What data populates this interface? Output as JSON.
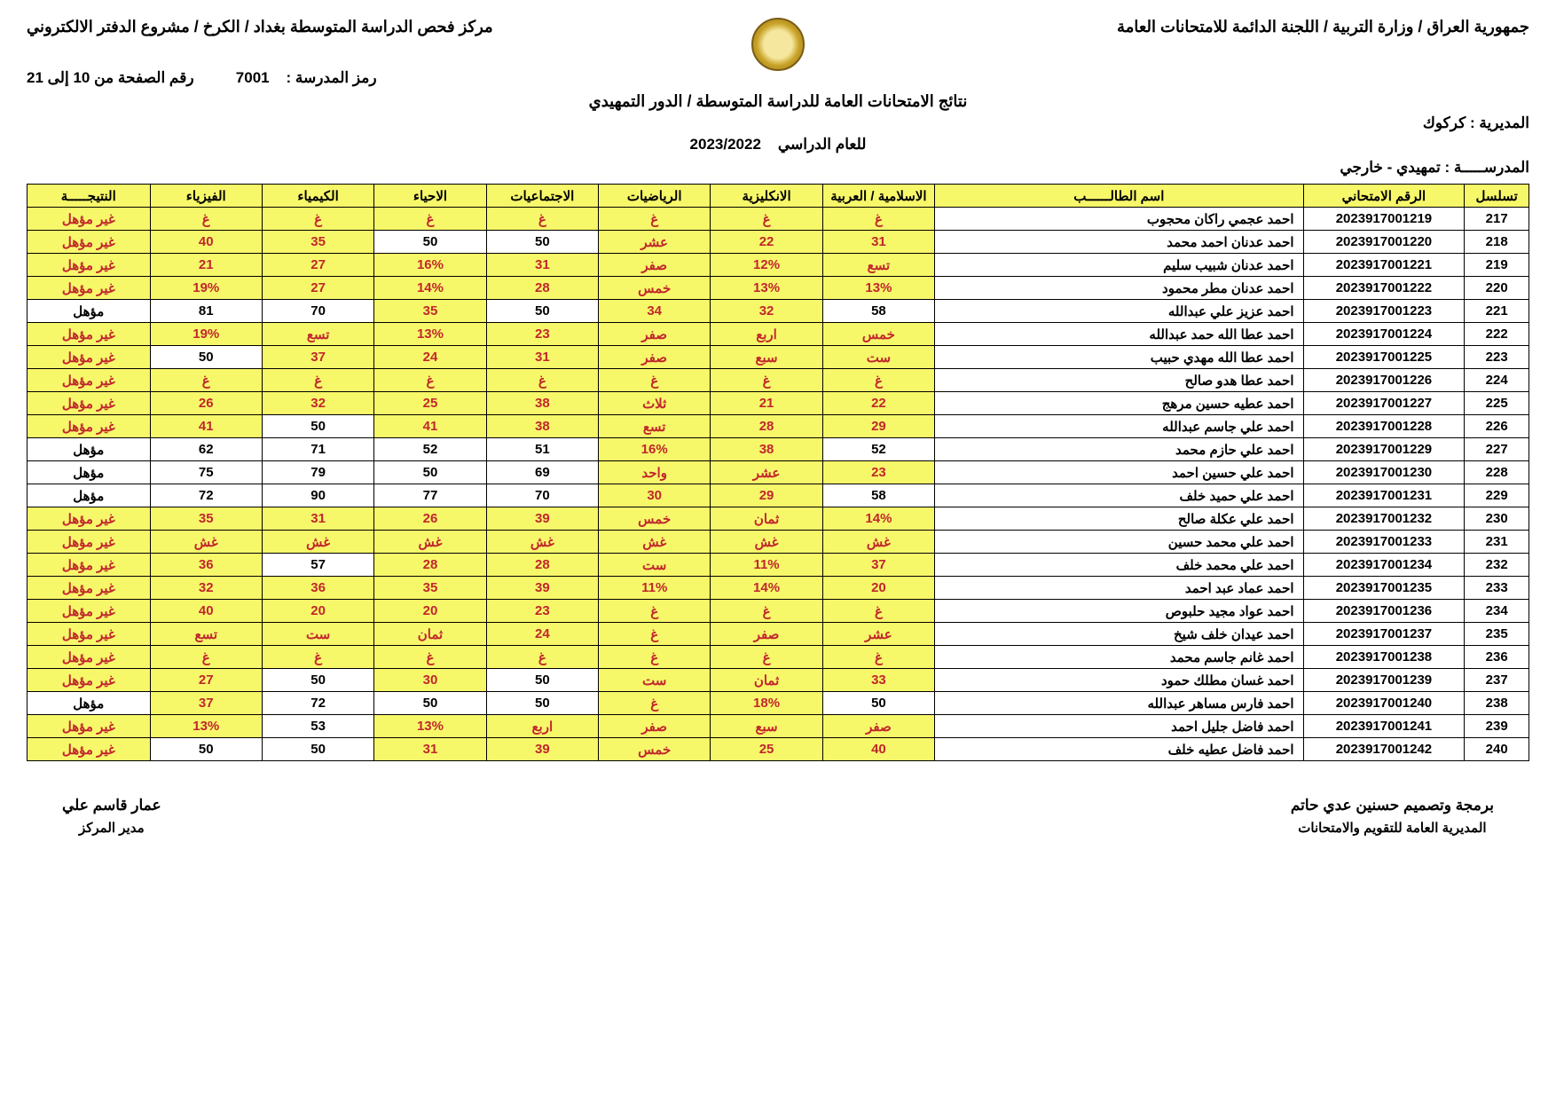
{
  "header": {
    "right": "جمهورية العراق / وزارة التربية / اللجنة الدائمة للامتحانات العامة",
    "left": "مركز فحص الدراسة المتوسطة بغداد / الكرخ / مشروع الدفتر الالكتروني",
    "school_code_label": "رمز المدرسة :",
    "school_code": "7001",
    "page_label": "رقم الصفحة من 10 إلى 21",
    "title": "نتائج الامتحانات العامة للدراسة المتوسطة / الدور التمهيدي",
    "year_label": "للعام الدراسي",
    "year": "2023/2022",
    "directorate_label": "المديرية",
    "directorate": "كركوك",
    "school_label": "المدرســـــة",
    "school": "تمهيدي - خارجي"
  },
  "columns": [
    "تسلسل",
    "الرقم الامتحاني",
    "اسم الطالــــــب",
    "الاسلامية / العربية",
    "الانكليزية",
    "الرياضيات",
    "الاجتماعيات",
    "الاحياء",
    "الكيمياء",
    "الفيزياء",
    "النتيجـــــة"
  ],
  "pass_label": "مؤهل",
  "fail_label": "غير مؤهل",
  "rows": [
    {
      "seq": "217",
      "exam": "2023917001219",
      "name": "احمد عجمي راكان محجوب",
      "g": [
        "غ",
        "غ",
        "غ",
        "غ",
        "غ",
        "غ",
        "غ"
      ],
      "f": [
        1,
        1,
        1,
        1,
        1,
        1,
        1
      ],
      "res": 0
    },
    {
      "seq": "218",
      "exam": "2023917001220",
      "name": "احمد عدنان احمد محمد",
      "g": [
        "31",
        "22",
        "عشر",
        "50",
        "50",
        "35",
        "40"
      ],
      "f": [
        1,
        1,
        1,
        0,
        0,
        1,
        1
      ],
      "res": 0
    },
    {
      "seq": "219",
      "exam": "2023917001221",
      "name": "احمد عدنان شبيب سليم",
      "g": [
        "تسع",
        "12%",
        "صفر",
        "31",
        "16%",
        "27",
        "21"
      ],
      "f": [
        1,
        1,
        1,
        1,
        1,
        1,
        1
      ],
      "res": 0
    },
    {
      "seq": "220",
      "exam": "2023917001222",
      "name": "احمد عدنان مطر محمود",
      "g": [
        "13%",
        "13%",
        "خمس",
        "28",
        "14%",
        "27",
        "19%"
      ],
      "f": [
        1,
        1,
        1,
        1,
        1,
        1,
        1
      ],
      "res": 0
    },
    {
      "seq": "221",
      "exam": "2023917001223",
      "name": "احمد عزيز علي عبدالله",
      "g": [
        "58",
        "32",
        "34",
        "50",
        "35",
        "70",
        "81"
      ],
      "f": [
        0,
        1,
        1,
        0,
        1,
        0,
        0
      ],
      "res": 1
    },
    {
      "seq": "222",
      "exam": "2023917001224",
      "name": "احمد عطا الله حمد عبدالله",
      "g": [
        "خمس",
        "اربع",
        "صفر",
        "23",
        "13%",
        "تسع",
        "19%"
      ],
      "f": [
        1,
        1,
        1,
        1,
        1,
        1,
        1
      ],
      "res": 0
    },
    {
      "seq": "223",
      "exam": "2023917001225",
      "name": "احمد عطا الله مهدي حبيب",
      "g": [
        "ست",
        "سبع",
        "صفر",
        "31",
        "24",
        "37",
        "50"
      ],
      "f": [
        1,
        1,
        1,
        1,
        1,
        1,
        0
      ],
      "res": 0
    },
    {
      "seq": "224",
      "exam": "2023917001226",
      "name": "احمد عطا هدو صالح",
      "g": [
        "غ",
        "غ",
        "غ",
        "غ",
        "غ",
        "غ",
        "غ"
      ],
      "f": [
        1,
        1,
        1,
        1,
        1,
        1,
        1
      ],
      "res": 0
    },
    {
      "seq": "225",
      "exam": "2023917001227",
      "name": "احمد عطيه حسين مرهج",
      "g": [
        "22",
        "21",
        "ثلاث",
        "38",
        "25",
        "32",
        "26"
      ],
      "f": [
        1,
        1,
        1,
        1,
        1,
        1,
        1
      ],
      "res": 0
    },
    {
      "seq": "226",
      "exam": "2023917001228",
      "name": "احمد علي جاسم عبدالله",
      "g": [
        "29",
        "28",
        "تسع",
        "38",
        "41",
        "50",
        "41"
      ],
      "f": [
        1,
        1,
        1,
        1,
        1,
        0,
        1
      ],
      "res": 0
    },
    {
      "seq": "227",
      "exam": "2023917001229",
      "name": "احمد علي حازم محمد",
      "g": [
        "52",
        "38",
        "16%",
        "51",
        "52",
        "71",
        "62"
      ],
      "f": [
        0,
        1,
        1,
        0,
        0,
        0,
        0
      ],
      "res": 1
    },
    {
      "seq": "228",
      "exam": "2023917001230",
      "name": "احمد علي حسين احمد",
      "g": [
        "23",
        "عشر",
        "واحد",
        "69",
        "50",
        "79",
        "75"
      ],
      "f": [
        1,
        1,
        1,
        0,
        0,
        0,
        0
      ],
      "res": 1
    },
    {
      "seq": "229",
      "exam": "2023917001231",
      "name": "احمد علي حميد خلف",
      "g": [
        "58",
        "29",
        "30",
        "70",
        "77",
        "90",
        "72"
      ],
      "f": [
        0,
        1,
        1,
        0,
        0,
        0,
        0
      ],
      "res": 1
    },
    {
      "seq": "230",
      "exam": "2023917001232",
      "name": "احمد علي عكلة صالح",
      "g": [
        "14%",
        "ثمان",
        "خمس",
        "39",
        "26",
        "31",
        "35"
      ],
      "f": [
        1,
        1,
        1,
        1,
        1,
        1,
        1
      ],
      "res": 0
    },
    {
      "seq": "231",
      "exam": "2023917001233",
      "name": "احمد علي محمد حسين",
      "g": [
        "غش",
        "غش",
        "غش",
        "غش",
        "غش",
        "غش",
        "غش"
      ],
      "f": [
        1,
        1,
        1,
        1,
        1,
        1,
        1
      ],
      "res": 0
    },
    {
      "seq": "232",
      "exam": "2023917001234",
      "name": "احمد علي محمد خلف",
      "g": [
        "37",
        "11%",
        "ست",
        "28",
        "28",
        "57",
        "36"
      ],
      "f": [
        1,
        1,
        1,
        1,
        1,
        0,
        1
      ],
      "res": 0
    },
    {
      "seq": "233",
      "exam": "2023917001235",
      "name": "احمد عماد عبد احمد",
      "g": [
        "20",
        "14%",
        "11%",
        "39",
        "35",
        "36",
        "32"
      ],
      "f": [
        1,
        1,
        1,
        1,
        1,
        1,
        1
      ],
      "res": 0
    },
    {
      "seq": "234",
      "exam": "2023917001236",
      "name": "احمد عواد مجيد حلبوص",
      "g": [
        "غ",
        "غ",
        "غ",
        "23",
        "20",
        "20",
        "40"
      ],
      "f": [
        1,
        1,
        1,
        1,
        1,
        1,
        1
      ],
      "res": 0
    },
    {
      "seq": "235",
      "exam": "2023917001237",
      "name": "احمد عيدان خلف شيخ",
      "g": [
        "عشر",
        "صفر",
        "غ",
        "24",
        "ثمان",
        "ست",
        "تسع"
      ],
      "f": [
        1,
        1,
        1,
        1,
        1,
        1,
        1
      ],
      "res": 0
    },
    {
      "seq": "236",
      "exam": "2023917001238",
      "name": "احمد غانم جاسم محمد",
      "g": [
        "غ",
        "غ",
        "غ",
        "غ",
        "غ",
        "غ",
        "غ"
      ],
      "f": [
        1,
        1,
        1,
        1,
        1,
        1,
        1
      ],
      "res": 0
    },
    {
      "seq": "237",
      "exam": "2023917001239",
      "name": "احمد غسان مطلك حمود",
      "g": [
        "33",
        "ثمان",
        "ست",
        "50",
        "30",
        "50",
        "27"
      ],
      "f": [
        1,
        1,
        1,
        0,
        1,
        0,
        1
      ],
      "res": 0
    },
    {
      "seq": "238",
      "exam": "2023917001240",
      "name": "احمد فارس مساهر عبدالله",
      "g": [
        "50",
        "18%",
        "غ",
        "50",
        "50",
        "72",
        "37"
      ],
      "f": [
        0,
        1,
        1,
        0,
        0,
        0,
        1
      ],
      "res": 1
    },
    {
      "seq": "239",
      "exam": "2023917001241",
      "name": "احمد فاضل جليل احمد",
      "g": [
        "صفر",
        "سبع",
        "صفر",
        "اربع",
        "13%",
        "53",
        "13%"
      ],
      "f": [
        1,
        1,
        1,
        1,
        1,
        0,
        1
      ],
      "res": 0
    },
    {
      "seq": "240",
      "exam": "2023917001242",
      "name": "احمد فاضل عطيه خلف",
      "g": [
        "40",
        "25",
        "خمس",
        "39",
        "31",
        "50",
        "50"
      ],
      "f": [
        1,
        1,
        1,
        1,
        1,
        0,
        0
      ],
      "res": 0
    }
  ],
  "footer": {
    "right_name": "برمجة وتصميم حسنين عدي حاتم",
    "right_sub": "المديرية العامة للتقويم والامتحانات",
    "left_name": "عمار قاسم علي",
    "left_sub": "مدير المركز"
  }
}
